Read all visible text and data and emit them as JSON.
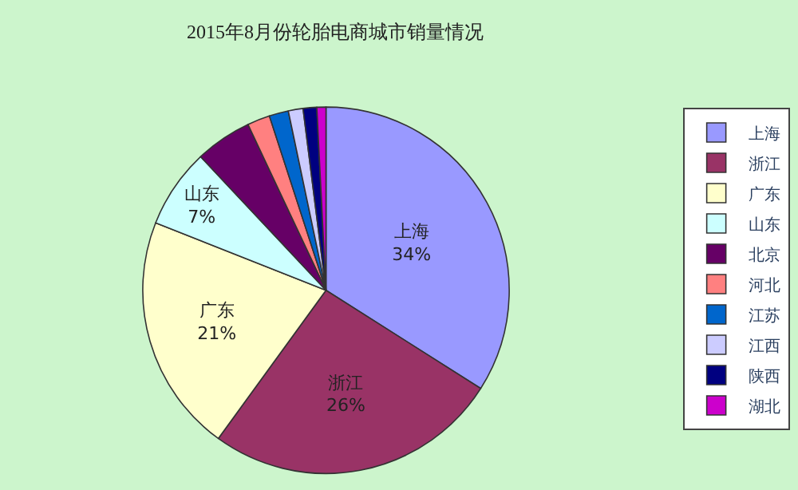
{
  "chart_data": {
    "type": "pie",
    "title": "2015年8月份轮胎电商城市销量情况",
    "categories": [
      "上海",
      "浙江",
      "广东",
      "山东",
      "北京",
      "河北",
      "江苏",
      "江西",
      "陕西",
      "湖北"
    ],
    "values": [
      34,
      26,
      21,
      7,
      5,
      2,
      1.7,
      1.3,
      1.2,
      0.8
    ],
    "value_labels": [
      "34%",
      "26%",
      "21%",
      "7%",
      null,
      null,
      null,
      null,
      null,
      null
    ],
    "colors": [
      "#9999ff",
      "#993366",
      "#ffffcc",
      "#ccffff",
      "#660066",
      "#ff8080",
      "#0066cc",
      "#ccccff",
      "#000080",
      "#cc00cc"
    ],
    "legend": "right"
  }
}
